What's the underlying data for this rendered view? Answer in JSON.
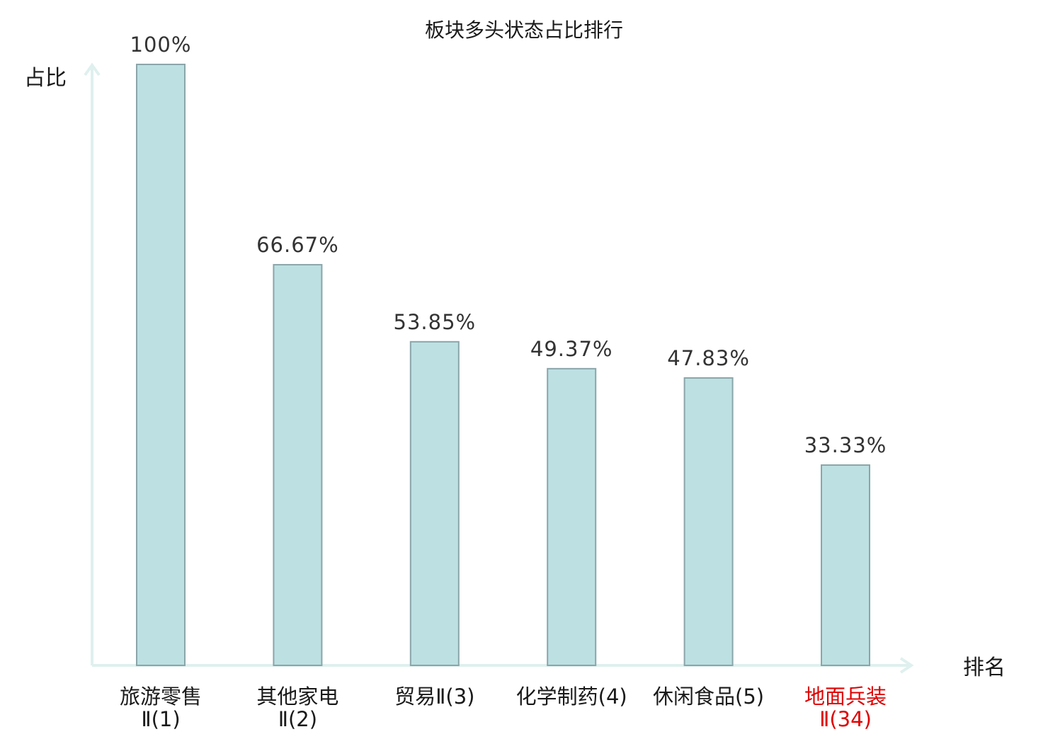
{
  "chart_data": {
    "type": "bar",
    "title": "板块多头状态占比排行",
    "ylabel": "占比",
    "xlabel": "排名",
    "categories": [
      [
        "旅游零售",
        "Ⅱ(1)"
      ],
      [
        "其他家电",
        "Ⅱ(2)"
      ],
      [
        "贸易Ⅱ(3)"
      ],
      [
        "化学制药(4)"
      ],
      [
        "休闲食品(5)"
      ],
      [
        "地面兵装",
        "Ⅱ(34)"
      ]
    ],
    "values": [
      100,
      66.67,
      53.85,
      49.37,
      47.83,
      33.33
    ],
    "value_labels": [
      "100%",
      "66.67%",
      "53.85%",
      "49.37%",
      "47.83%",
      "33.33%"
    ],
    "highlighted_index": 5,
    "ylim": [
      0,
      100
    ],
    "grid": false,
    "colors": {
      "bar_fill": "#bde0e3",
      "bar_stroke": "#8aa6aa",
      "axis": "#dff0ee",
      "text": "#1a1a1a",
      "value_label": "#333333",
      "highlight": "#e00000"
    }
  }
}
